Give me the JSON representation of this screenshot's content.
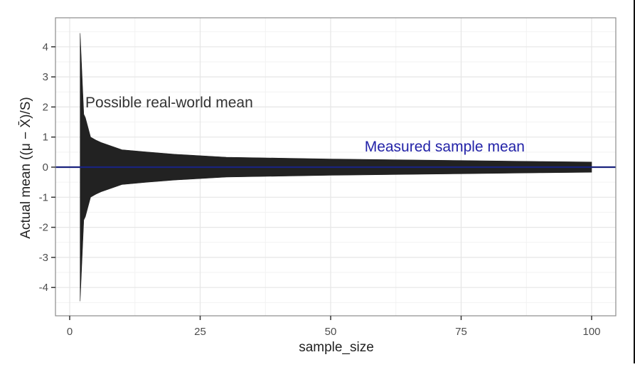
{
  "chart_data": {
    "type": "area",
    "title": "",
    "xlabel": "sample_size",
    "ylabel": "Actual mean ((μ − X̄)/S)",
    "xlim": [
      -5,
      105
    ],
    "ylim": [
      -4.9,
      4.9
    ],
    "x_ticks": [
      0,
      25,
      50,
      75,
      100
    ],
    "x_tick_labels": [
      "0",
      "25",
      "50",
      "75",
      "100"
    ],
    "y_ticks": [
      4,
      3,
      2,
      1,
      0,
      -1,
      -2,
      -3,
      -4
    ],
    "y_tick_labels": [
      "4",
      "3",
      "2",
      "1",
      "0",
      "-1",
      "-2",
      "-3",
      "-4"
    ],
    "grid": true,
    "legend": null,
    "series": [
      {
        "name": "Possible real-world mean",
        "kind": "ribbon",
        "color": "#222222",
        "x": [
          2,
          2.7,
          3,
          4,
          5,
          6,
          8,
          10,
          15,
          20,
          30,
          40,
          50,
          60,
          75,
          90,
          100
        ],
        "upper": [
          4.45,
          1.76,
          1.65,
          1.0,
          0.9,
          0.82,
          0.7,
          0.58,
          0.5,
          0.43,
          0.33,
          0.3,
          0.27,
          0.25,
          0.22,
          0.19,
          0.17
        ],
        "lower": [
          -4.45,
          -1.76,
          -1.65,
          -1.0,
          -0.9,
          -0.82,
          -0.7,
          -0.58,
          -0.5,
          -0.43,
          -0.33,
          -0.3,
          -0.27,
          -0.25,
          -0.22,
          -0.19,
          -0.17
        ]
      },
      {
        "name": "Measured sample mean",
        "kind": "hline",
        "y": 0,
        "color": "#1a237e"
      }
    ],
    "annotations": [
      {
        "text": "Possible real-world mean",
        "x": 3,
        "y": 2.15,
        "color": "#333333"
      },
      {
        "text": "Measured sample mean",
        "x": 56.5,
        "y": 0.68,
        "color": "#2323a8"
      }
    ]
  }
}
